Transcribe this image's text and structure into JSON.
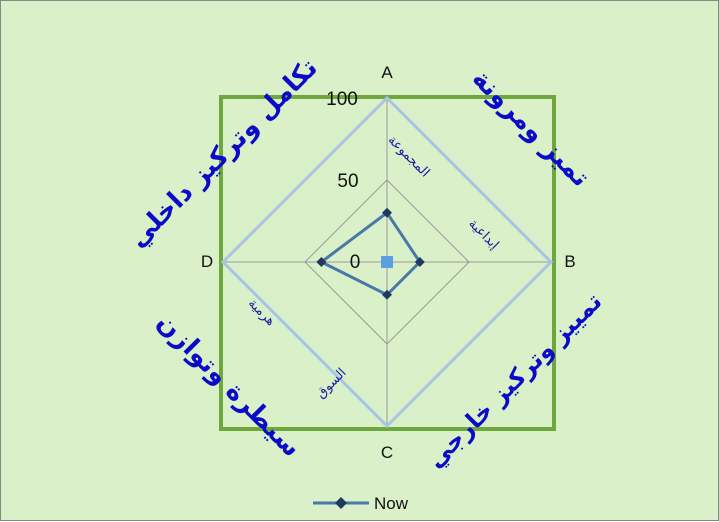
{
  "chart_data": {
    "type": "radar",
    "axes": [
      "A",
      "B",
      "C",
      "D"
    ],
    "rlim": [
      0,
      100
    ],
    "ticks": [
      "0",
      "50",
      "100"
    ],
    "series": [
      {
        "name": "Now",
        "values": [
          30,
          20,
          20,
          40
        ],
        "color": "#4a78a8"
      }
    ],
    "legend": "bottom",
    "quadrant_labels": {
      "top_left": "تكامل وتركيز داخلي",
      "top_right": "تميز ومرونة",
      "bottom_right": "تمييز وتركيز خارجي",
      "bottom_left": "سيطرة وتوازن"
    },
    "inner_labels": {
      "top": "المجموعة",
      "right": "إبداعية",
      "bottom": "السوق",
      "left": "هرمية"
    },
    "colors": {
      "background": "#d9f0c9",
      "square_frame": "#6ea83c",
      "outer_diamond": "#a9c4e4",
      "grid": "#9a9a9a",
      "series": "#4a78a8",
      "marker": "#1f3a5f",
      "center_marker": "#5aa0e0",
      "quad_text": "#0a0ac8"
    }
  }
}
